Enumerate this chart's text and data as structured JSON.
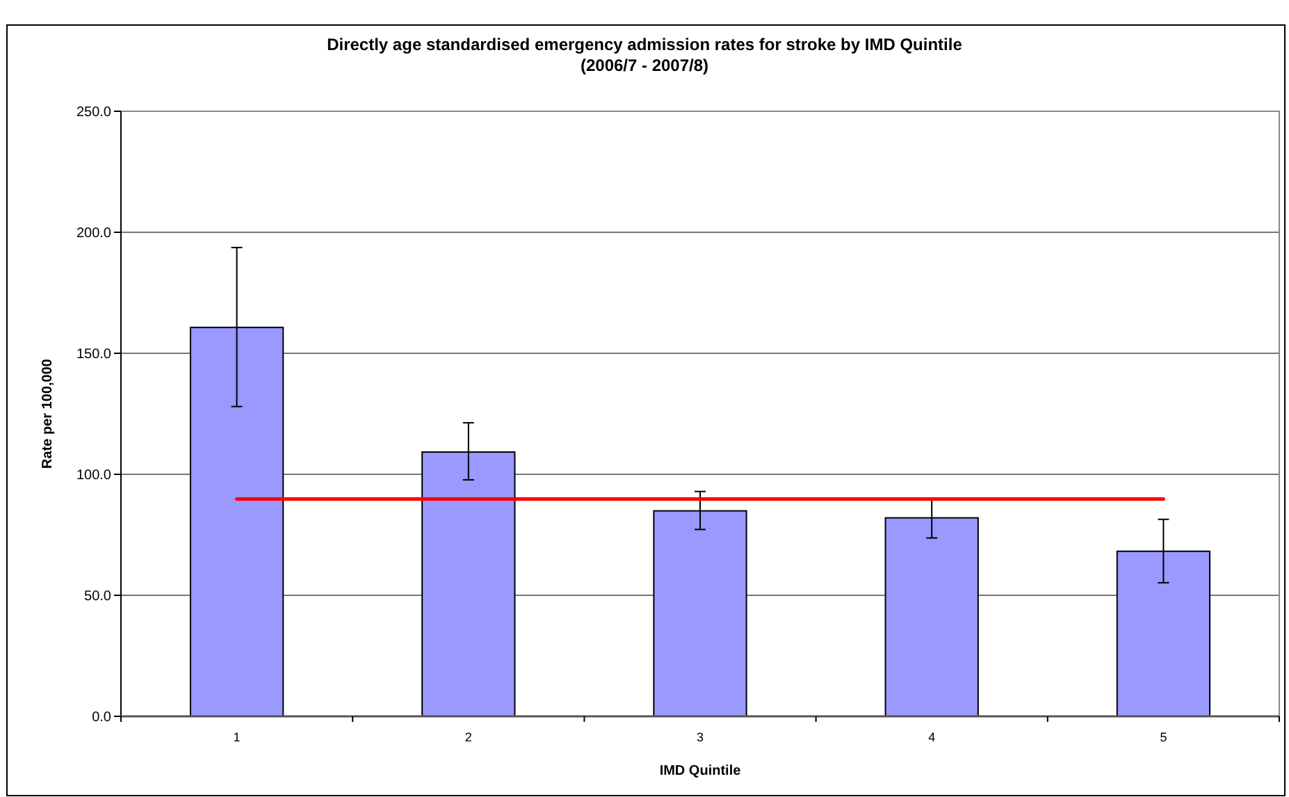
{
  "chart_data": {
    "type": "bar",
    "title": "Directly age standardised emergency admission rates for stroke by IMD Quintile",
    "subtitle": "(2006/7 - 2007/8)",
    "xlabel": "IMD Quintile",
    "ylabel": "Rate per 100,000",
    "categories": [
      "1",
      "2",
      "3",
      "4",
      "5"
    ],
    "series": [
      {
        "color": "#9999ff",
        "values": [
          160.7,
          109.2,
          84.9,
          82.0,
          68.2
        ],
        "errors": [
          [
            128,
            193.7
          ],
          [
            97.7,
            121.3
          ],
          [
            77.2,
            92.9
          ],
          [
            73.7,
            90
          ],
          [
            55.2,
            81.4
          ]
        ]
      },
      {
        "type": "line",
        "color": "#ff0000",
        "values": [
          89.8,
          89.8,
          89.8,
          89.8,
          89.8
        ]
      }
    ],
    "ylim": [
      0,
      250
    ],
    "yticks": [
      {
        "value": 0,
        "label": "0.0"
      },
      {
        "value": 50,
        "label": "50.0"
      },
      {
        "value": 100,
        "label": "100.0"
      },
      {
        "value": 150,
        "label": "150.0"
      },
      {
        "value": 200,
        "label": "200.0"
      },
      {
        "value": 250,
        "label": "250.0"
      }
    ],
    "grid": "y",
    "marker": "none",
    "line_style": "solid"
  }
}
